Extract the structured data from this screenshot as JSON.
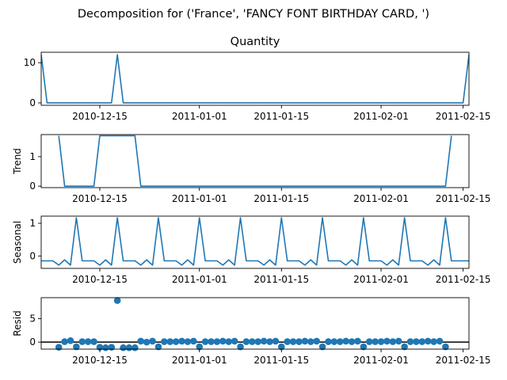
{
  "chart_data": [
    {
      "type": "line",
      "title": "Decomposition for ('France', 'FANCY FONT BIRTHDAY CARD, ')",
      "subtitle": "Quantity",
      "ylabel": "",
      "ylim": [
        -0.6,
        12.6
      ],
      "yticks": [
        0,
        10
      ],
      "xlim": [
        "2010-12-05",
        "2011-02-16"
      ],
      "xticks": [
        "2010-12-15",
        "2011-01-01",
        "2011-01-15",
        "2011-02-01",
        "2011-02-15"
      ],
      "series": [
        {
          "points": [
            [
              "2010-12-05",
              12
            ],
            [
              "2010-12-06",
              0
            ],
            [
              "2010-12-17",
              0
            ],
            [
              "2010-12-18",
              12
            ],
            [
              "2010-12-19",
              0
            ],
            [
              "2011-02-15",
              0
            ],
            [
              "2011-02-16",
              12
            ]
          ]
        }
      ]
    },
    {
      "type": "line",
      "title": "",
      "ylabel": "Trend",
      "ylim": [
        -0.05,
        1.75
      ],
      "yticks": [
        0,
        1
      ],
      "xlim": [
        "2010-12-05",
        "2011-02-16"
      ],
      "xticks": [
        "2010-12-15",
        "2011-01-01",
        "2011-01-15",
        "2011-02-01",
        "2011-02-15"
      ],
      "series": [
        {
          "points": [
            [
              "2010-12-08",
              1.71
            ],
            [
              "2010-12-09",
              0
            ],
            [
              "2010-12-14",
              0
            ],
            [
              "2010-12-15",
              1.71
            ],
            [
              "2010-12-21",
              1.71
            ],
            [
              "2010-12-22",
              0
            ],
            [
              "2011-02-12",
              0
            ],
            [
              "2011-02-13",
              1.71
            ]
          ]
        }
      ]
    },
    {
      "type": "line",
      "title": "",
      "ylabel": "Seasonal",
      "ylim": [
        -0.38,
        1.22
      ],
      "yticks": [
        0,
        1
      ],
      "xlim": [
        "2010-12-05",
        "2011-02-16"
      ],
      "xticks": [
        "2010-12-15",
        "2011-01-01",
        "2011-01-15",
        "2011-02-01",
        "2011-02-15"
      ],
      "series": [
        {
          "weekly_pattern": [
            -0.15,
            -0.15,
            -0.15,
            -0.28,
            -0.12,
            -0.28,
            1.17
          ],
          "points": [
            [
              "2010-12-05",
              -0.15
            ],
            [
              "2010-12-06",
              -0.15
            ],
            [
              "2010-12-07",
              -0.15
            ],
            [
              "2010-12-08",
              -0.28
            ],
            [
              "2010-12-09",
              -0.12
            ],
            [
              "2010-12-10",
              -0.28
            ],
            [
              "2010-12-11",
              1.17
            ],
            [
              "2010-12-12",
              -0.15
            ],
            [
              "2010-12-13",
              -0.15
            ],
            [
              "2010-12-14",
              -0.15
            ],
            [
              "2010-12-15",
              -0.28
            ],
            [
              "2010-12-16",
              -0.12
            ],
            [
              "2010-12-17",
              -0.28
            ],
            [
              "2010-12-18",
              1.17
            ],
            [
              "2010-12-19",
              -0.15
            ],
            [
              "2010-12-20",
              -0.15
            ],
            [
              "2010-12-21",
              -0.15
            ],
            [
              "2010-12-22",
              -0.28
            ],
            [
              "2010-12-23",
              -0.12
            ],
            [
              "2010-12-24",
              -0.28
            ],
            [
              "2010-12-25",
              1.17
            ],
            [
              "2010-12-26",
              -0.15
            ],
            [
              "2010-12-27",
              -0.15
            ],
            [
              "2010-12-28",
              -0.15
            ],
            [
              "2010-12-29",
              -0.28
            ],
            [
              "2010-12-30",
              -0.12
            ],
            [
              "2010-12-31",
              -0.28
            ],
            [
              "2011-01-01",
              1.17
            ],
            [
              "2011-01-02",
              -0.15
            ],
            [
              "2011-01-03",
              -0.15
            ],
            [
              "2011-01-04",
              -0.15
            ],
            [
              "2011-01-05",
              -0.28
            ],
            [
              "2011-01-06",
              -0.12
            ],
            [
              "2011-01-07",
              -0.28
            ],
            [
              "2011-01-08",
              1.17
            ],
            [
              "2011-01-09",
              -0.15
            ],
            [
              "2011-01-10",
              -0.15
            ],
            [
              "2011-01-11",
              -0.15
            ],
            [
              "2011-01-12",
              -0.28
            ],
            [
              "2011-01-13",
              -0.12
            ],
            [
              "2011-01-14",
              -0.28
            ],
            [
              "2011-01-15",
              1.17
            ],
            [
              "2011-01-16",
              -0.15
            ],
            [
              "2011-01-17",
              -0.15
            ],
            [
              "2011-01-18",
              -0.15
            ],
            [
              "2011-01-19",
              -0.28
            ],
            [
              "2011-01-20",
              -0.12
            ],
            [
              "2011-01-21",
              -0.28
            ],
            [
              "2011-01-22",
              1.17
            ],
            [
              "2011-01-23",
              -0.15
            ],
            [
              "2011-01-24",
              -0.15
            ],
            [
              "2011-01-25",
              -0.15
            ],
            [
              "2011-01-26",
              -0.28
            ],
            [
              "2011-01-27",
              -0.12
            ],
            [
              "2011-01-28",
              -0.28
            ],
            [
              "2011-01-29",
              1.17
            ],
            [
              "2011-01-30",
              -0.15
            ],
            [
              "2011-01-31",
              -0.15
            ],
            [
              "2011-02-01",
              -0.15
            ],
            [
              "2011-02-02",
              -0.28
            ],
            [
              "2011-02-03",
              -0.12
            ],
            [
              "2011-02-04",
              -0.28
            ],
            [
              "2011-02-05",
              1.17
            ],
            [
              "2011-02-06",
              -0.15
            ],
            [
              "2011-02-07",
              -0.15
            ],
            [
              "2011-02-08",
              -0.15
            ],
            [
              "2011-02-09",
              -0.28
            ],
            [
              "2011-02-10",
              -0.12
            ],
            [
              "2011-02-11",
              -0.28
            ],
            [
              "2011-02-12",
              1.17
            ],
            [
              "2011-02-13",
              -0.15
            ],
            [
              "2011-02-14",
              -0.15
            ],
            [
              "2011-02-15",
              -0.15
            ],
            [
              "2011-02-16",
              -0.15
            ]
          ]
        }
      ]
    },
    {
      "type": "scatter",
      "title": "",
      "ylabel": "Resid",
      "ylim": [
        -1.5,
        9.5
      ],
      "yticks": [
        0,
        5
      ],
      "xlim": [
        "2010-12-05",
        "2011-02-16"
      ],
      "xticks": [
        "2010-12-15",
        "2011-01-01",
        "2011-01-15",
        "2011-02-01",
        "2011-02-15"
      ],
      "zero_line": true,
      "series": [
        {
          "points": [
            [
              "2010-12-08",
              -1.1
            ],
            [
              "2010-12-09",
              0.1
            ],
            [
              "2010-12-10",
              0.3
            ],
            [
              "2010-12-11",
              -1.0
            ],
            [
              "2010-12-12",
              0.1
            ],
            [
              "2010-12-13",
              0.1
            ],
            [
              "2010-12-14",
              0.1
            ],
            [
              "2010-12-15",
              -1.1
            ],
            [
              "2010-12-16",
              -1.2
            ],
            [
              "2010-12-17",
              -1.1
            ],
            [
              "2010-12-18",
              8.9
            ],
            [
              "2010-12-19",
              -1.2
            ],
            [
              "2010-12-20",
              -1.2
            ],
            [
              "2010-12-21",
              -1.2
            ],
            [
              "2010-12-22",
              0.2
            ],
            [
              "2010-12-23",
              0.0
            ],
            [
              "2010-12-24",
              0.2
            ],
            [
              "2010-12-25",
              -1.0
            ],
            [
              "2010-12-26",
              0.1
            ],
            [
              "2010-12-27",
              0.1
            ],
            [
              "2010-12-28",
              0.1
            ],
            [
              "2010-12-29",
              0.2
            ],
            [
              "2010-12-30",
              0.1
            ],
            [
              "2010-12-31",
              0.2
            ],
            [
              "2011-01-01",
              -1.0
            ],
            [
              "2011-01-02",
              0.1
            ],
            [
              "2011-01-03",
              0.1
            ],
            [
              "2011-01-04",
              0.1
            ],
            [
              "2011-01-05",
              0.2
            ],
            [
              "2011-01-06",
              0.1
            ],
            [
              "2011-01-07",
              0.2
            ],
            [
              "2011-01-08",
              -1.0
            ],
            [
              "2011-01-09",
              0.1
            ],
            [
              "2011-01-10",
              0.1
            ],
            [
              "2011-01-11",
              0.1
            ],
            [
              "2011-01-12",
              0.2
            ],
            [
              "2011-01-13",
              0.1
            ],
            [
              "2011-01-14",
              0.2
            ],
            [
              "2011-01-15",
              -1.0
            ],
            [
              "2011-01-16",
              0.1
            ],
            [
              "2011-01-17",
              0.1
            ],
            [
              "2011-01-18",
              0.1
            ],
            [
              "2011-01-19",
              0.2
            ],
            [
              "2011-01-20",
              0.1
            ],
            [
              "2011-01-21",
              0.2
            ],
            [
              "2011-01-22",
              -1.0
            ],
            [
              "2011-01-23",
              0.1
            ],
            [
              "2011-01-24",
              0.1
            ],
            [
              "2011-01-25",
              0.1
            ],
            [
              "2011-01-26",
              0.2
            ],
            [
              "2011-01-27",
              0.1
            ],
            [
              "2011-01-28",
              0.2
            ],
            [
              "2011-01-29",
              -1.0
            ],
            [
              "2011-01-30",
              0.1
            ],
            [
              "2011-01-31",
              0.1
            ],
            [
              "2011-02-01",
              0.1
            ],
            [
              "2011-02-02",
              0.2
            ],
            [
              "2011-02-03",
              0.1
            ],
            [
              "2011-02-04",
              0.2
            ],
            [
              "2011-02-05",
              -1.0
            ],
            [
              "2011-02-06",
              0.1
            ],
            [
              "2011-02-07",
              0.1
            ],
            [
              "2011-02-08",
              0.1
            ],
            [
              "2011-02-09",
              0.2
            ],
            [
              "2011-02-10",
              0.1
            ],
            [
              "2011-02-11",
              0.2
            ],
            [
              "2011-02-12",
              -1.0
            ]
          ]
        }
      ]
    }
  ],
  "colors": {
    "series": "#1f77b4",
    "axes": "#000000",
    "background": "#ffffff"
  }
}
